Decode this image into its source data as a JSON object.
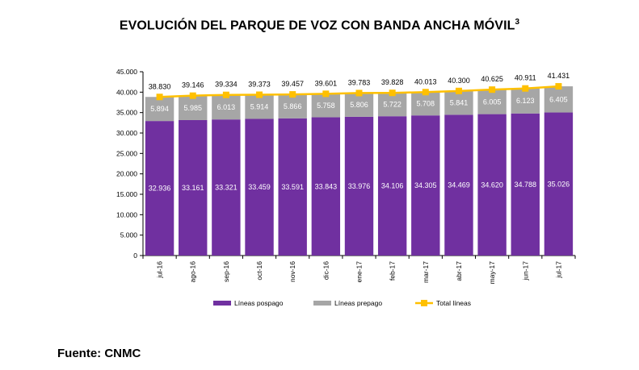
{
  "title": "EVOLUCIÓN DEL PARQUE DE VOZ CON BANDA ANCHA MÓVIL",
  "title_superscript": "3",
  "source": "Fuente: CNMC",
  "chart_data": {
    "type": "bar",
    "stacked": true,
    "categories": [
      "jul-16",
      "ago-16",
      "sep-16",
      "oct-16",
      "nov-16",
      "dic-16",
      "ene-17",
      "feb-17",
      "mar-17",
      "abr-17",
      "may-17",
      "jun-17",
      "jul-17"
    ],
    "series": [
      {
        "name": "Líneas pospago",
        "type": "bar",
        "color": "#7030a0",
        "values": [
          32936,
          33161,
          33321,
          33459,
          33591,
          33843,
          33976,
          34106,
          34305,
          34469,
          34620,
          34788,
          35026
        ],
        "labels": [
          "32.936",
          "33.161",
          "33.321",
          "33.459",
          "33.591",
          "33.843",
          "33.976",
          "34.106",
          "34.305",
          "34.469",
          "34.620",
          "34.788",
          "35.026"
        ]
      },
      {
        "name": "Líneas prepago",
        "type": "bar",
        "color": "#a6a6a6",
        "values": [
          5894,
          5985,
          6013,
          5914,
          5866,
          5758,
          5806,
          5722,
          5708,
          5841,
          6005,
          6123,
          6405
        ],
        "labels": [
          "5.894",
          "5.985",
          "6.013",
          "5.914",
          "5.866",
          "5.758",
          "5.806",
          "5.722",
          "5.708",
          "5.841",
          "6.005",
          "6.123",
          "6.405"
        ]
      },
      {
        "name": "Total líneas",
        "type": "line",
        "color": "#ffc000",
        "values": [
          38830,
          39146,
          39334,
          39373,
          39457,
          39601,
          39783,
          39828,
          40013,
          40300,
          40625,
          40911,
          41431
        ],
        "labels": [
          "38.830",
          "39.146",
          "39.334",
          "39.373",
          "39.457",
          "39.601",
          "39.783",
          "39.828",
          "40.013",
          "40.300",
          "40.625",
          "40.911",
          "41.431"
        ]
      }
    ],
    "ylim": [
      0,
      45000
    ],
    "yticks": [
      "0",
      "5.000",
      "10.000",
      "15.000",
      "20.000",
      "25.000",
      "30.000",
      "35.000",
      "40.000",
      "45.000"
    ],
    "legend_position": "bottom",
    "grid": false
  }
}
